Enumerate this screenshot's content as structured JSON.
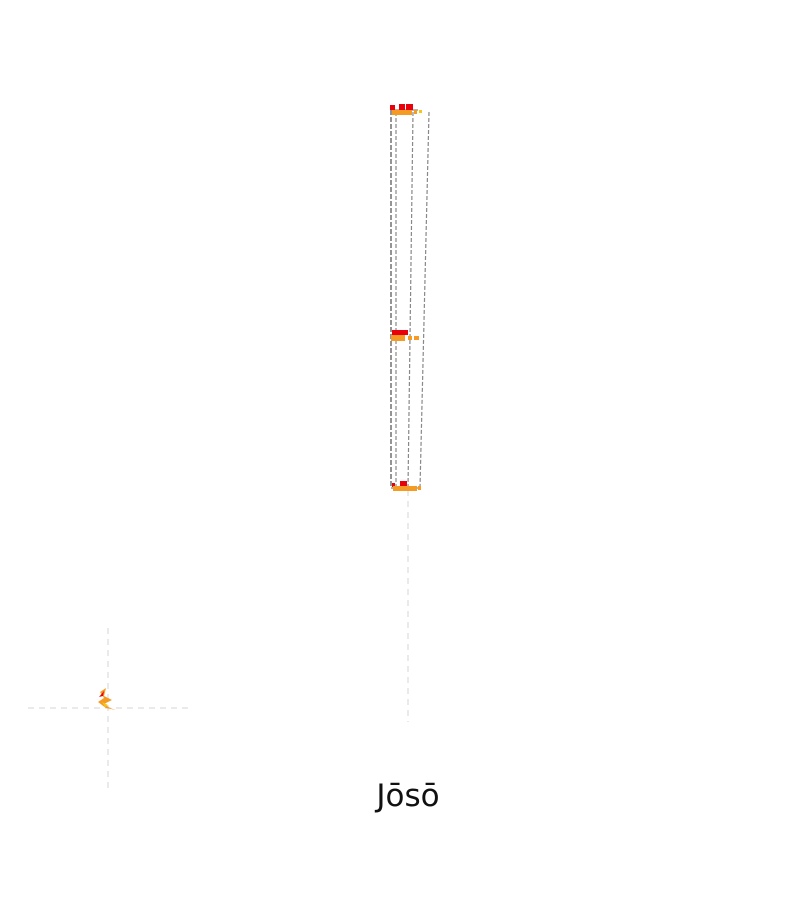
{
  "map": {
    "place_name": "Jōsō"
  },
  "colors": {
    "route_stroke": "#888888",
    "guide_line": "#dddddd",
    "marker_red": "#e8000b",
    "marker_orange": "#f59a23",
    "marker_yellow": "#f5c518",
    "label_text": "#111111"
  },
  "icons": {
    "mini_marker": "lightning-bolt-icon"
  }
}
